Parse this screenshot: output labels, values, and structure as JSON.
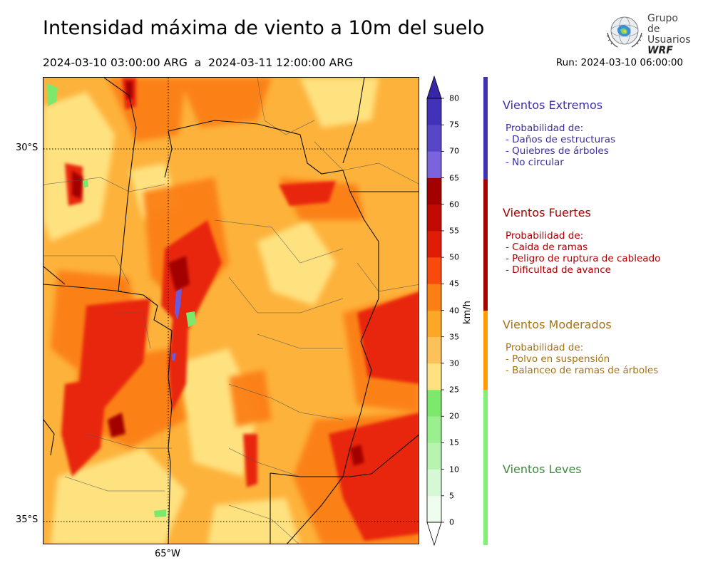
{
  "header": {
    "title": "Intensidad máxima de viento a 10m del suelo",
    "period": "2024-03-10 03:00:00 ARG  a  2024-03-11 12:00:00 ARG",
    "run": "Run: 2024-03-10 06:00:00"
  },
  "logo": {
    "line1": "Grupo de",
    "line2": "Usuarios",
    "line3": "WRF"
  },
  "map": {
    "lat_labels": [
      "30°S",
      "35°S"
    ],
    "lon_labels": [
      "65°W"
    ]
  },
  "colorbar": {
    "unit": "km/h",
    "ticks": [
      "0",
      "5",
      "10",
      "15",
      "20",
      "25",
      "30",
      "35",
      "40",
      "45",
      "50",
      "55",
      "60",
      "65",
      "70",
      "75",
      "80"
    ],
    "colors": [
      "#eefdee",
      "#d4f9d4",
      "#b8f4b0",
      "#9aef8e",
      "#7ce86c",
      "#ffe280",
      "#fdc15a",
      "#fda726",
      "#fb7f12",
      "#f84a0c",
      "#df1d04",
      "#c10a02",
      "#a30000",
      "#7a63dd",
      "#5846c9",
      "#4232b8"
    ],
    "extend_min_color": "#ffffff",
    "extend_max_color": "#3726a7"
  },
  "categories": [
    {
      "title": "Vientos Extremos",
      "color": "#3a2fab",
      "prob_title": "Probabilidad de:",
      "items": [
        "- Daños de estructuras",
        "- Quiebres de árboles",
        "- No circular"
      ]
    },
    {
      "title": "Vientos Fuertes",
      "color": "#aa0000",
      "prob_title": "Probabilidad de:",
      "items": [
        "- Caida de ramas",
        "- Peligro de ruptura de cableado",
        "- Dificultad de avance"
      ]
    },
    {
      "title": "Vientos Moderados",
      "color": "#a8730d",
      "prob_title": "Probabilidad de:",
      "items": [
        "- Polvo en suspensión",
        "- Balanceo de ramas de árboles"
      ]
    },
    {
      "title": "Vientos Leves",
      "color": "#3d8a3d"
    }
  ],
  "legend_bar_colors": [
    "#3d33b3",
    "#a60000",
    "#ff9d00",
    "#7ef174"
  ]
}
